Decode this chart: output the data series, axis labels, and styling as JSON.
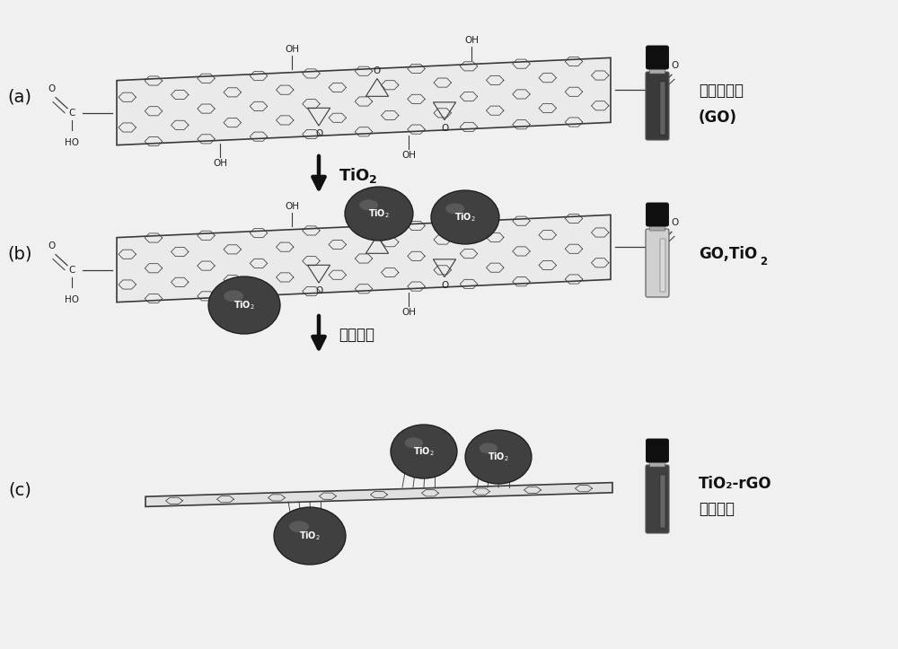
{
  "bg_color": "#f0f0f0",
  "line_color": "#3a3a3a",
  "sheet_fill_go": "#e8e8e8",
  "sheet_fill_rgo": "#e0e0e0",
  "tio2_fill": "#4a4a4a",
  "tio2_edge": "#222222",
  "tio2_highlight": "#7a7a7a",
  "tio2_text": "#ffffff",
  "arrow_color": "#111111",
  "text_color": "#111111",
  "panel_label_color": "#111111",
  "vial_cap_color": "#111111",
  "vial_a_fill": "#3a3a3a",
  "vial_b_fill": "#c8c8c8",
  "vial_c_fill": "#454545",
  "label_a1": "氧化石墨烯",
  "label_a2": "(GO)",
  "label_b": "GO,TiO",
  "label_b_sub": "2",
  "label_c1": "TiO₂-rGO",
  "label_c2": "复合材料",
  "arrow1_label": "TiO₂",
  "arrow2_label": "水热过程",
  "panel_a": "(a)",
  "panel_b": "(b)",
  "panel_c": "(c)"
}
